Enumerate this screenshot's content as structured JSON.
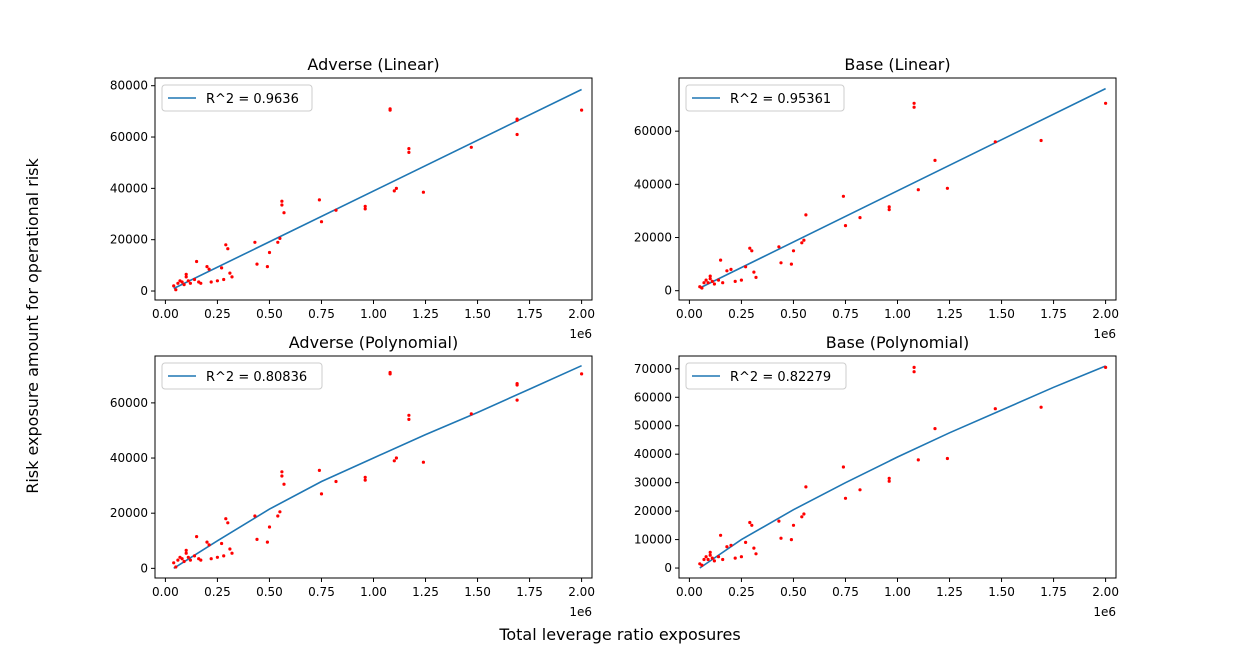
{
  "figure": {
    "ylabel": "Risk exposure amount for operational risk",
    "xlabel": "Total leverage ratio exposures",
    "colors": {
      "points": "#ff0000",
      "line": "#1f77b4",
      "axis": "#000000"
    }
  },
  "chart_data": [
    {
      "type": "scatter",
      "title": "Adverse (Linear)",
      "legend": "R^2 = 0.9636",
      "legend_loc": "upper-left",
      "x_scale_label": "1e6",
      "xlim": [
        -0.05,
        2.05
      ],
      "ylim": [
        -3500,
        83000
      ],
      "xticks": [
        0.0,
        0.25,
        0.5,
        0.75,
        1.0,
        1.25,
        1.5,
        1.75,
        2.0
      ],
      "xtick_labels": [
        "0.00",
        "0.25",
        "0.50",
        "0.75",
        "1.00",
        "1.25",
        "1.50",
        "1.75",
        "2.00"
      ],
      "yticks": [
        0,
        20000,
        40000,
        60000,
        80000
      ],
      "ytick_labels": [
        "0",
        "20000",
        "40000",
        "60000",
        "80000"
      ],
      "fit": {
        "kind": "linear",
        "x": [
          0.04,
          2.0
        ],
        "y": [
          1000,
          78500
        ]
      },
      "points": [
        [
          0.04,
          2000
        ],
        [
          0.05,
          500
        ],
        [
          0.06,
          3000
        ],
        [
          0.07,
          4000
        ],
        [
          0.08,
          3500
        ],
        [
          0.09,
          2500
        ],
        [
          0.1,
          6500
        ],
        [
          0.1,
          5500
        ],
        [
          0.11,
          4000
        ],
        [
          0.12,
          3000
        ],
        [
          0.14,
          4500
        ],
        [
          0.15,
          11500
        ],
        [
          0.16,
          3500
        ],
        [
          0.17,
          3000
        ],
        [
          0.2,
          9500
        ],
        [
          0.21,
          8500
        ],
        [
          0.22,
          3500
        ],
        [
          0.25,
          4000
        ],
        [
          0.27,
          9000
        ],
        [
          0.28,
          4500
        ],
        [
          0.29,
          18000
        ],
        [
          0.3,
          16500
        ],
        [
          0.31,
          7000
        ],
        [
          0.32,
          5500
        ],
        [
          0.43,
          19000
        ],
        [
          0.44,
          10500
        ],
        [
          0.49,
          9500
        ],
        [
          0.5,
          15000
        ],
        [
          0.54,
          19000
        ],
        [
          0.55,
          20500
        ],
        [
          0.56,
          35000
        ],
        [
          0.56,
          33500
        ],
        [
          0.57,
          30500
        ],
        [
          0.74,
          35500
        ],
        [
          0.75,
          27000
        ],
        [
          0.82,
          31500
        ],
        [
          0.96,
          33000
        ],
        [
          0.96,
          32000
        ],
        [
          1.08,
          71000
        ],
        [
          1.08,
          70500
        ],
        [
          1.1,
          39000
        ],
        [
          1.11,
          40000
        ],
        [
          1.17,
          55500
        ],
        [
          1.17,
          54000
        ],
        [
          1.24,
          38500
        ],
        [
          1.47,
          56000
        ],
        [
          1.69,
          67000
        ],
        [
          1.69,
          66500
        ],
        [
          1.69,
          61000
        ],
        [
          2.0,
          70500
        ]
      ]
    },
    {
      "type": "scatter",
      "title": "Base (Linear)",
      "legend": "R^2 = 0.95361",
      "legend_loc": "upper-left",
      "x_scale_label": "1e6",
      "xlim": [
        -0.05,
        2.05
      ],
      "ylim": [
        -3500,
        80000
      ],
      "xticks": [
        0.0,
        0.25,
        0.5,
        0.75,
        1.0,
        1.25,
        1.5,
        1.75,
        2.0
      ],
      "xtick_labels": [
        "0.00",
        "0.25",
        "0.50",
        "0.75",
        "1.00",
        "1.25",
        "1.50",
        "1.75",
        "2.00"
      ],
      "yticks": [
        0,
        20000,
        40000,
        60000
      ],
      "ytick_labels": [
        "0",
        "20000",
        "40000",
        "60000"
      ],
      "fit": {
        "kind": "linear",
        "x": [
          0.05,
          2.0
        ],
        "y": [
          1000,
          76000
        ]
      },
      "points": [
        [
          0.05,
          1500
        ],
        [
          0.06,
          1000
        ],
        [
          0.07,
          3000
        ],
        [
          0.08,
          4000
        ],
        [
          0.09,
          3000
        ],
        [
          0.1,
          5500
        ],
        [
          0.1,
          4500
        ],
        [
          0.11,
          3500
        ],
        [
          0.12,
          2500
        ],
        [
          0.14,
          4000
        ],
        [
          0.15,
          11500
        ],
        [
          0.16,
          3000
        ],
        [
          0.18,
          7500
        ],
        [
          0.2,
          8000
        ],
        [
          0.22,
          3500
        ],
        [
          0.25,
          4000
        ],
        [
          0.27,
          9000
        ],
        [
          0.29,
          16000
        ],
        [
          0.3,
          15000
        ],
        [
          0.31,
          7000
        ],
        [
          0.32,
          5000
        ],
        [
          0.43,
          16500
        ],
        [
          0.44,
          10500
        ],
        [
          0.49,
          10000
        ],
        [
          0.5,
          15000
        ],
        [
          0.54,
          18000
        ],
        [
          0.55,
          19000
        ],
        [
          0.56,
          28500
        ],
        [
          0.74,
          35500
        ],
        [
          0.75,
          24500
        ],
        [
          0.82,
          27500
        ],
        [
          0.96,
          31500
        ],
        [
          0.96,
          30500
        ],
        [
          1.08,
          70500
        ],
        [
          1.08,
          69000
        ],
        [
          1.1,
          38000
        ],
        [
          1.18,
          49000
        ],
        [
          1.24,
          38500
        ],
        [
          1.47,
          56000
        ],
        [
          1.69,
          56500
        ],
        [
          2.0,
          70500
        ]
      ]
    },
    {
      "type": "scatter",
      "title": "Adverse (Polynomial)",
      "legend": "R^2 = 0.80836",
      "legend_loc": "upper-left",
      "x_scale_label": "1e6",
      "xlim": [
        -0.05,
        2.05
      ],
      "ylim": [
        -3500,
        77000
      ],
      "xticks": [
        0.0,
        0.25,
        0.5,
        0.75,
        1.0,
        1.25,
        1.5,
        1.75,
        2.0
      ],
      "xtick_labels": [
        "0.00",
        "0.25",
        "0.50",
        "0.75",
        "1.00",
        "1.25",
        "1.50",
        "1.75",
        "2.00"
      ],
      "yticks": [
        0,
        20000,
        40000,
        60000
      ],
      "ytick_labels": [
        "0",
        "20000",
        "40000",
        "60000"
      ],
      "fit": {
        "kind": "curve",
        "x": [
          0.04,
          0.25,
          0.5,
          0.75,
          1.0,
          1.25,
          1.5,
          1.75,
          2.0
        ],
        "y": [
          0,
          10000,
          21500,
          31500,
          40000,
          48500,
          56500,
          65000,
          73500
        ]
      },
      "points": [
        [
          0.04,
          2000
        ],
        [
          0.05,
          500
        ],
        [
          0.06,
          3000
        ],
        [
          0.07,
          4000
        ],
        [
          0.08,
          3500
        ],
        [
          0.09,
          2500
        ],
        [
          0.1,
          6500
        ],
        [
          0.1,
          5500
        ],
        [
          0.11,
          4000
        ],
        [
          0.12,
          3000
        ],
        [
          0.14,
          4500
        ],
        [
          0.15,
          11500
        ],
        [
          0.16,
          3500
        ],
        [
          0.17,
          3000
        ],
        [
          0.2,
          9500
        ],
        [
          0.21,
          8500
        ],
        [
          0.22,
          3500
        ],
        [
          0.25,
          4000
        ],
        [
          0.27,
          9000
        ],
        [
          0.28,
          4500
        ],
        [
          0.29,
          18000
        ],
        [
          0.3,
          16500
        ],
        [
          0.31,
          7000
        ],
        [
          0.32,
          5500
        ],
        [
          0.43,
          19000
        ],
        [
          0.44,
          10500
        ],
        [
          0.49,
          9500
        ],
        [
          0.5,
          15000
        ],
        [
          0.54,
          19000
        ],
        [
          0.55,
          20500
        ],
        [
          0.56,
          35000
        ],
        [
          0.56,
          33500
        ],
        [
          0.57,
          30500
        ],
        [
          0.74,
          35500
        ],
        [
          0.75,
          27000
        ],
        [
          0.82,
          31500
        ],
        [
          0.96,
          33000
        ],
        [
          0.96,
          32000
        ],
        [
          1.08,
          71000
        ],
        [
          1.08,
          70500
        ],
        [
          1.1,
          39000
        ],
        [
          1.11,
          40000
        ],
        [
          1.17,
          55500
        ],
        [
          1.17,
          54000
        ],
        [
          1.24,
          38500
        ],
        [
          1.47,
          56000
        ],
        [
          1.69,
          67000
        ],
        [
          1.69,
          66500
        ],
        [
          1.69,
          61000
        ],
        [
          2.0,
          70500
        ]
      ]
    },
    {
      "type": "scatter",
      "title": "Base (Polynomial)",
      "legend": "R^2 = 0.82279",
      "legend_loc": "upper-left",
      "x_scale_label": "1e6",
      "xlim": [
        -0.05,
        2.05
      ],
      "ylim": [
        -3500,
        74500
      ],
      "xticks": [
        0.0,
        0.25,
        0.5,
        0.75,
        1.0,
        1.25,
        1.5,
        1.75,
        2.0
      ],
      "xtick_labels": [
        "0.00",
        "0.25",
        "0.50",
        "0.75",
        "1.00",
        "1.25",
        "1.50",
        "1.75",
        "2.00"
      ],
      "yticks": [
        0,
        10000,
        20000,
        30000,
        40000,
        50000,
        60000,
        70000
      ],
      "ytick_labels": [
        "0",
        "10000",
        "20000",
        "30000",
        "40000",
        "50000",
        "60000",
        "70000"
      ],
      "fit": {
        "kind": "curve",
        "x": [
          0.05,
          0.25,
          0.5,
          0.75,
          1.0,
          1.25,
          1.5,
          1.75,
          2.0
        ],
        "y": [
          0,
          10000,
          20500,
          30000,
          39000,
          47500,
          55500,
          63500,
          71000
        ]
      },
      "points": [
        [
          0.05,
          1500
        ],
        [
          0.06,
          1000
        ],
        [
          0.07,
          3000
        ],
        [
          0.08,
          4000
        ],
        [
          0.09,
          3000
        ],
        [
          0.1,
          5500
        ],
        [
          0.1,
          4500
        ],
        [
          0.11,
          3500
        ],
        [
          0.12,
          2500
        ],
        [
          0.14,
          4000
        ],
        [
          0.15,
          11500
        ],
        [
          0.16,
          3000
        ],
        [
          0.18,
          7500
        ],
        [
          0.2,
          8000
        ],
        [
          0.22,
          3500
        ],
        [
          0.25,
          4000
        ],
        [
          0.27,
          9000
        ],
        [
          0.29,
          16000
        ],
        [
          0.3,
          15000
        ],
        [
          0.31,
          7000
        ],
        [
          0.32,
          5000
        ],
        [
          0.43,
          16500
        ],
        [
          0.44,
          10500
        ],
        [
          0.49,
          10000
        ],
        [
          0.5,
          15000
        ],
        [
          0.54,
          18000
        ],
        [
          0.55,
          19000
        ],
        [
          0.56,
          28500
        ],
        [
          0.74,
          35500
        ],
        [
          0.75,
          24500
        ],
        [
          0.82,
          27500
        ],
        [
          0.96,
          31500
        ],
        [
          0.96,
          30500
        ],
        [
          1.08,
          70500
        ],
        [
          1.08,
          69000
        ],
        [
          1.1,
          38000
        ],
        [
          1.18,
          49000
        ],
        [
          1.24,
          38500
        ],
        [
          1.47,
          56000
        ],
        [
          1.69,
          56500
        ],
        [
          2.0,
          70500
        ]
      ]
    }
  ]
}
